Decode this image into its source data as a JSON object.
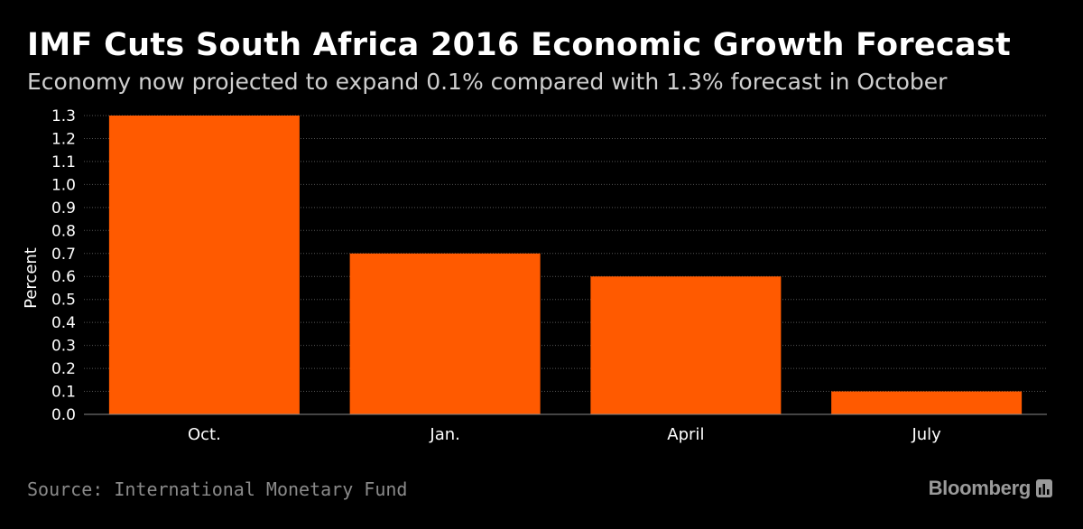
{
  "header": {
    "title": "IMF Cuts South Africa 2016 Economic Growth Forecast",
    "subtitle": "Economy now projected to expand 0.1% compared with 1.3% forecast in October"
  },
  "footer": {
    "source": "Source: International Monetary Fund",
    "brand": "Bloomberg"
  },
  "colors": {
    "background": "#000000",
    "bar": "#ff5a00",
    "grid": "#555555",
    "axis_text": "#ffffff"
  },
  "chart_data": {
    "type": "bar",
    "categories": [
      "Oct.",
      "Jan.",
      "April",
      "July"
    ],
    "values": [
      1.3,
      0.7,
      0.6,
      0.1
    ],
    "ylabel": "Percent",
    "ylim": [
      0,
      1.3
    ],
    "yticks": [
      "0.0",
      "0.1",
      "0.2",
      "0.3",
      "0.4",
      "0.5",
      "0.6",
      "0.7",
      "0.8",
      "0.9",
      "1.0",
      "1.1",
      "1.2",
      "1.3"
    ],
    "grid": true
  }
}
